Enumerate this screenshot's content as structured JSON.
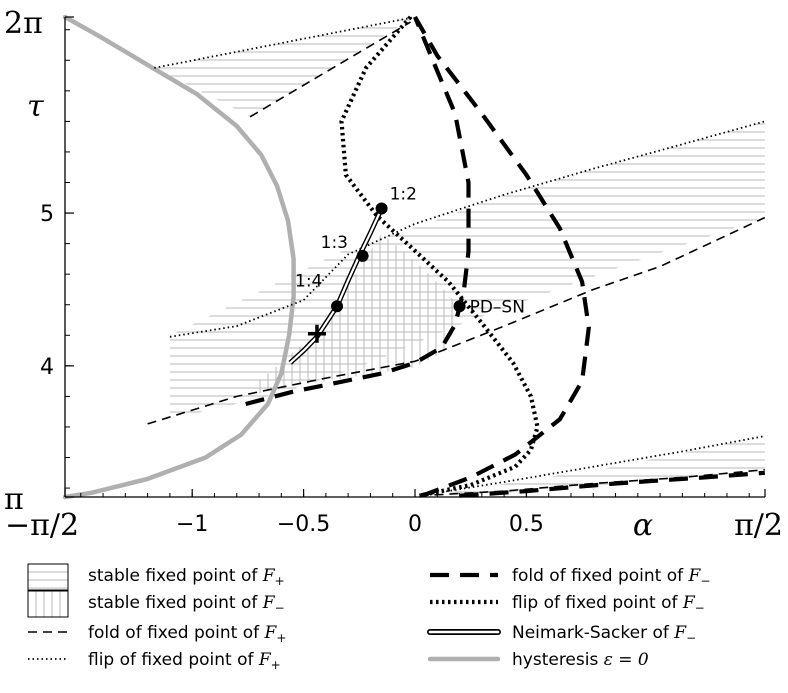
{
  "chart_data": {
    "type": "line",
    "xlabel": "α",
    "ylabel": "τ",
    "xlim": [
      -1.5708,
      1.5708
    ],
    "ylim": [
      3.1416,
      6.2832
    ],
    "x_ticks": [
      {
        "value": -1.5708,
        "label": "−π/2",
        "style": "math"
      },
      {
        "value": -1.0,
        "label": "−1",
        "style": "num"
      },
      {
        "value": -0.5,
        "label": "−0.5",
        "style": "num"
      },
      {
        "value": 0.0,
        "label": "0",
        "style": "num"
      },
      {
        "value": 0.5,
        "label": "0.5",
        "style": "num"
      },
      {
        "value": 1.5708,
        "label": "π/2",
        "style": "math"
      }
    ],
    "y_ticks": [
      {
        "value": 3.1416,
        "label": "π",
        "style": "math"
      },
      {
        "value": 4.0,
        "label": "4",
        "style": "num"
      },
      {
        "value": 5.0,
        "label": "5",
        "style": "num"
      },
      {
        "value": 6.2832,
        "label": "2π",
        "style": "math"
      }
    ],
    "regions": [
      {
        "name": "stable-plus-top",
        "hatch": "horizontal",
        "points": [
          [
            -1.17,
            5.95
          ],
          [
            0.0,
            6.2832
          ],
          [
            -0.74,
            5.63
          ]
        ]
      },
      {
        "name": "stable-plus-middle",
        "hatch": "horizontal",
        "points": [
          [
            -1.1,
            4.2
          ],
          [
            -0.3,
            4.77
          ],
          [
            0.05,
            4.93
          ],
          [
            0.4,
            5.12
          ],
          [
            0.8,
            5.29
          ],
          [
            1.1,
            5.41
          ],
          [
            1.57,
            5.6
          ],
          [
            1.57,
            4.97
          ],
          [
            1.1,
            4.74
          ],
          [
            0.6,
            4.48
          ],
          [
            0.2,
            4.27
          ],
          [
            -0.2,
            4.02
          ],
          [
            -0.6,
            3.82
          ],
          [
            -1.1,
            3.65
          ]
        ]
      },
      {
        "name": "stable-minus",
        "hatch": "vertical",
        "points": [
          [
            -0.7,
            3.82
          ],
          [
            -0.55,
            3.87
          ],
          [
            -0.4,
            3.9
          ],
          [
            -0.22,
            3.94
          ],
          [
            0.0,
            3.99
          ],
          [
            0.15,
            4.11
          ],
          [
            0.2,
            4.39
          ],
          [
            0.05,
            4.62
          ],
          [
            -0.15,
            4.87
          ],
          [
            -0.35,
            4.4
          ],
          [
            -0.43,
            4.21
          ],
          [
            -0.54,
            4.1
          ],
          [
            -0.7,
            3.9
          ]
        ]
      },
      {
        "name": "stable-plus-bottom",
        "hatch": "horizontal",
        "points": [
          [
            0.05,
            3.147
          ],
          [
            0.45,
            3.24
          ],
          [
            0.9,
            3.34
          ],
          [
            1.57,
            3.54
          ],
          [
            1.57,
            3.32
          ],
          [
            1.1,
            3.26
          ],
          [
            0.7,
            3.2
          ],
          [
            0.3,
            3.16
          ]
        ]
      }
    ],
    "series": [
      {
        "role": "hysteresis",
        "style": "gray",
        "points": [
          [
            -1.5708,
            6.2832
          ],
          [
            -1.42,
            6.16
          ],
          [
            -1.2,
            5.97
          ],
          [
            -0.98,
            5.78
          ],
          [
            -0.8,
            5.57
          ],
          [
            -0.69,
            5.38
          ],
          [
            -0.62,
            5.18
          ],
          [
            -0.57,
            4.95
          ],
          [
            -0.545,
            4.7
          ],
          [
            -0.545,
            4.45
          ],
          [
            -0.565,
            4.2
          ],
          [
            -0.6,
            3.95
          ],
          [
            -0.66,
            3.75
          ],
          [
            -0.78,
            3.55
          ],
          [
            -0.94,
            3.4
          ],
          [
            -1.2,
            3.26
          ],
          [
            -1.45,
            3.17
          ],
          [
            -1.5708,
            3.1416
          ]
        ]
      },
      {
        "role": "fold-plus",
        "style": "thin-dash",
        "points": [
          [
            -0.74,
            5.63
          ],
          [
            -0.02,
            6.25
          ]
        ]
      },
      {
        "role": "fold-plus",
        "style": "thin-dash",
        "points": [
          [
            -1.2,
            3.62
          ],
          [
            -0.8,
            3.8
          ],
          [
            -0.4,
            3.92
          ],
          [
            0.0,
            4.03
          ],
          [
            0.4,
            4.26
          ],
          [
            0.8,
            4.5
          ],
          [
            1.1,
            4.65
          ],
          [
            1.57,
            4.97
          ]
        ]
      },
      {
        "role": "fold-plus",
        "style": "thin-dash",
        "points": [
          [
            0.02,
            3.15
          ],
          [
            0.4,
            3.18
          ],
          [
            0.8,
            3.23
          ],
          [
            1.2,
            3.27
          ],
          [
            1.57,
            3.32
          ]
        ]
      },
      {
        "role": "flip-plus",
        "style": "thin-dot",
        "points": [
          [
            -1.17,
            5.95
          ],
          [
            0.0,
            6.2832
          ]
        ]
      },
      {
        "role": "flip-plus",
        "style": "thin-dot",
        "points": [
          [
            -1.1,
            4.19
          ],
          [
            -0.8,
            4.26
          ],
          [
            -0.5,
            4.43
          ],
          [
            -0.3,
            4.73
          ],
          [
            0.0,
            4.93
          ],
          [
            0.4,
            5.12
          ],
          [
            0.8,
            5.29
          ],
          [
            1.1,
            5.41
          ],
          [
            1.57,
            5.6
          ]
        ]
      },
      {
        "role": "flip-plus",
        "style": "thin-dot",
        "points": [
          [
            0.02,
            3.15
          ],
          [
            0.4,
            3.24
          ],
          [
            0.8,
            3.34
          ],
          [
            1.2,
            3.44
          ],
          [
            1.57,
            3.54
          ]
        ]
      },
      {
        "role": "fold-minus",
        "style": "thick-dash",
        "points": [
          [
            -0.76,
            3.75
          ],
          [
            -0.55,
            3.83
          ],
          [
            -0.35,
            3.89
          ],
          [
            -0.15,
            3.95
          ],
          [
            0.0,
            4.02
          ],
          [
            0.12,
            4.12
          ],
          [
            0.18,
            4.27
          ],
          [
            0.22,
            4.5
          ],
          [
            0.24,
            4.75
          ],
          [
            0.24,
            5.2
          ],
          [
            0.18,
            5.65
          ],
          [
            0.08,
            6.0
          ],
          [
            0.0,
            6.2832
          ]
        ]
      },
      {
        "role": "fold-minus",
        "style": "thick-dash",
        "points": [
          [
            0.0,
            6.2832
          ],
          [
            0.1,
            6.03
          ],
          [
            0.3,
            5.65
          ],
          [
            0.5,
            5.25
          ],
          [
            0.65,
            4.9
          ],
          [
            0.75,
            4.55
          ],
          [
            0.78,
            4.25
          ],
          [
            0.75,
            3.9
          ],
          [
            0.65,
            3.65
          ],
          [
            0.45,
            3.42
          ],
          [
            0.25,
            3.27
          ],
          [
            0.05,
            3.16
          ],
          [
            0.02,
            3.15
          ]
        ]
      },
      {
        "role": "fold-minus",
        "style": "thick-dash",
        "points": [
          [
            0.2,
            3.15
          ],
          [
            0.5,
            3.18
          ],
          [
            0.9,
            3.23
          ],
          [
            1.3,
            3.27
          ],
          [
            1.57,
            3.3
          ]
        ]
      },
      {
        "role": "flip-minus",
        "style": "thick-dot",
        "points": [
          [
            -0.02,
            6.2832
          ],
          [
            -0.22,
            5.95
          ],
          [
            -0.33,
            5.6
          ],
          [
            -0.31,
            5.25
          ],
          [
            -0.17,
            4.98
          ],
          [
            -0.02,
            4.78
          ],
          [
            0.15,
            4.55
          ],
          [
            0.3,
            4.28
          ],
          [
            0.44,
            4.02
          ],
          [
            0.52,
            3.8
          ],
          [
            0.55,
            3.6
          ],
          [
            0.52,
            3.45
          ],
          [
            0.45,
            3.34
          ],
          [
            0.25,
            3.22
          ],
          [
            0.05,
            3.16
          ],
          [
            0.02,
            3.15
          ]
        ]
      },
      {
        "role": "neimark-sacker",
        "style": "double",
        "points": [
          [
            -0.56,
            4.02
          ],
          [
            -0.5,
            4.1
          ],
          [
            -0.44,
            4.19
          ],
          [
            -0.35,
            4.39
          ],
          [
            -0.3,
            4.56
          ],
          [
            -0.25,
            4.72
          ],
          [
            -0.2,
            4.87
          ],
          [
            -0.15,
            5.03
          ]
        ]
      }
    ],
    "points": [
      {
        "x": -0.15,
        "y": 5.03,
        "label": "1:2",
        "dx": 8,
        "dy": -9
      },
      {
        "x": -0.235,
        "y": 4.72,
        "label": "1:3",
        "dx": -42,
        "dy": -8
      },
      {
        "x": -0.35,
        "y": 4.39,
        "label": "1:4",
        "dx": -42,
        "dy": -20
      },
      {
        "x": 0.2,
        "y": 4.39,
        "label": "PD–SN",
        "dx": 10,
        "dy": 6
      }
    ],
    "cross": {
      "x": -0.44,
      "y": 4.21
    },
    "legend": [
      {
        "symbol": "hatch-h",
        "text": "stable fixed point of ",
        "var": "F",
        "sub": "+"
      },
      {
        "symbol": "hatch-v",
        "text": "stable fixed point of ",
        "var": "F",
        "sub": "−"
      },
      {
        "symbol": "thin-dash",
        "text": "fold of fixed point of ",
        "var": "F",
        "sub": "+"
      },
      {
        "symbol": "thin-dot",
        "text": "flip of fixed point of ",
        "var": "F",
        "sub": "+"
      },
      {
        "symbol": "thick-dash",
        "text": "fold of fixed point of ",
        "var": "F",
        "sub": "−"
      },
      {
        "symbol": "thick-dot",
        "text": "flip of fixed point of ",
        "var": "F",
        "sub": "−"
      },
      {
        "symbol": "double",
        "text": "Neimark-Sacker of ",
        "var": "F",
        "sub": "−"
      },
      {
        "symbol": "gray",
        "text": "hysteresis ",
        "var": "ε",
        "sub": "",
        "tail": " = 0"
      }
    ]
  }
}
